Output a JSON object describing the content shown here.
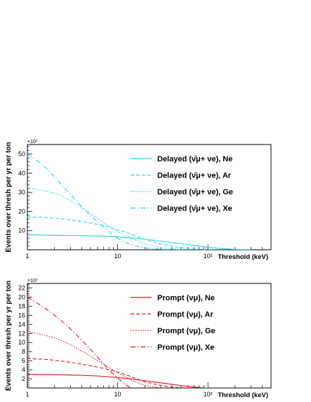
{
  "chart_data": [
    {
      "type": "line",
      "x_scale": "log",
      "xlabel": "Threshold (keV)",
      "ylabel": "Events over thresh per yr per ton",
      "y_multiplier_label": "×10³",
      "xlim": [
        1,
        500
      ],
      "ylim": [
        0,
        55
      ],
      "x_ticks": [
        {
          "value": 1,
          "label": "1"
        },
        {
          "value": 10,
          "label": "10"
        },
        {
          "value": 100,
          "label": "10²"
        }
      ],
      "y_ticks": [
        {
          "value": 10,
          "label": "10"
        },
        {
          "value": 20,
          "label": "20"
        },
        {
          "value": 30,
          "label": "30"
        },
        {
          "value": 40,
          "label": "40"
        },
        {
          "value": 50,
          "label": "50"
        }
      ],
      "grid": false,
      "legend": "top-right",
      "color": "#1fd6e8",
      "series": [
        {
          "name": "Delayed (ν̄μ+ νe), Ne",
          "dash": "solid",
          "x": [
            1,
            2,
            5,
            10,
            20,
            50,
            100,
            200,
            300
          ],
          "y": [
            7.8,
            7.6,
            7.3,
            6.7,
            5.5,
            3.2,
            1.3,
            0.2,
            0
          ]
        },
        {
          "name": "Delayed (ν̄μ+ νe), Ar",
          "dash": "dashed",
          "x": [
            1,
            2,
            5,
            10,
            20,
            30,
            50,
            80,
            120
          ],
          "y": [
            17.2,
            16.5,
            14,
            10.5,
            5.5,
            3,
            1.2,
            0.3,
            0
          ]
        },
        {
          "name": "Delayed (ν̄μ+ νe), Ge",
          "dash": "dotted",
          "x": [
            1,
            2,
            3,
            5,
            10,
            20,
            30,
            50,
            80
          ],
          "y": [
            32.5,
            29.5,
            25.5,
            19,
            9.5,
            3.2,
            1.2,
            0.2,
            0
          ]
        },
        {
          "name": "Delayed (ν̄μ+ νe), Xe",
          "dash": "dashdot",
          "x": [
            1,
            1.5,
            2,
            3,
            5,
            10,
            15,
            20,
            30,
            50
          ],
          "y": [
            50,
            44,
            38,
            29,
            18,
            6,
            2.5,
            1,
            0.3,
            0
          ]
        }
      ]
    },
    {
      "type": "line",
      "x_scale": "log",
      "xlabel": "Threshold (keV)",
      "ylabel": "Events over thresh per yr per ton",
      "y_multiplier_label": "×10³",
      "xlim": [
        1,
        500
      ],
      "ylim": [
        0,
        23
      ],
      "x_ticks": [
        {
          "value": 1,
          "label": "1"
        },
        {
          "value": 10,
          "label": "10"
        },
        {
          "value": 100,
          "label": "10²"
        }
      ],
      "y_ticks": [
        {
          "value": 2,
          "label": "2"
        },
        {
          "value": 4,
          "label": "4"
        },
        {
          "value": 6,
          "label": "6"
        },
        {
          "value": 8,
          "label": "8"
        },
        {
          "value": 10,
          "label": "10"
        },
        {
          "value": 12,
          "label": "12"
        },
        {
          "value": 14,
          "label": "14"
        },
        {
          "value": 16,
          "label": "16"
        },
        {
          "value": 18,
          "label": "18"
        },
        {
          "value": 20,
          "label": "20"
        },
        {
          "value": 22,
          "label": "22"
        }
      ],
      "grid": false,
      "legend": "top-right",
      "color": "#e8101a",
      "series": [
        {
          "name": "Prompt (νμ), Ne",
          "dash": "solid",
          "x": [
            1,
            2,
            5,
            10,
            20,
            40,
            60,
            80,
            100
          ],
          "y": [
            3,
            2.95,
            2.7,
            2.3,
            1.6,
            0.8,
            0.35,
            0.1,
            0
          ]
        },
        {
          "name": "Prompt (νμ), Ar",
          "dash": "dashed",
          "x": [
            1,
            2,
            5,
            10,
            20,
            30,
            40,
            60
          ],
          "y": [
            6.5,
            6.1,
            4.9,
            3.5,
            1.4,
            0.6,
            0.2,
            0
          ]
        },
        {
          "name": "Prompt (νμ), Ge",
          "dash": "dotted",
          "x": [
            1,
            2,
            3,
            5,
            8,
            10,
            15,
            20,
            30
          ],
          "y": [
            12.5,
            11,
            9.5,
            7,
            4.5,
            3.4,
            1.5,
            0.6,
            0
          ]
        },
        {
          "name": "Prompt (νμ), Xe",
          "dash": "dashdot",
          "x": [
            1,
            1.5,
            2,
            3,
            5,
            8,
            10,
            12,
            14
          ],
          "y": [
            20,
            17.8,
            16,
            13,
            8.5,
            4,
            2.2,
            0.9,
            0
          ]
        }
      ]
    }
  ]
}
